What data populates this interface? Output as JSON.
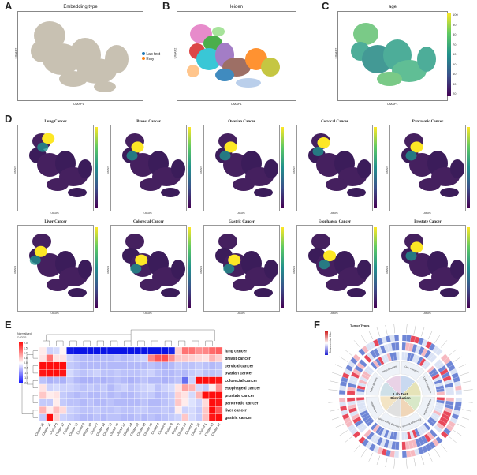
{
  "panels": {
    "A": {
      "letter": "A",
      "title": "Embedding type",
      "xlabel": "UMAP1",
      "ylabel": "UMAP2",
      "legend": [
        {
          "label": "Lab test",
          "color": "#1f77b4"
        },
        {
          "label": "Emy",
          "color": "#ff7f0e"
        }
      ]
    },
    "B": {
      "letter": "B",
      "title": "leiden",
      "xlabel": "UMAP1",
      "ylabel": "UMAP2"
    },
    "C": {
      "letter": "C",
      "title": "age",
      "xlabel": "UMAP1",
      "ylabel": "UMAP2",
      "colorbar_ticks": [
        "100",
        "90",
        "80",
        "70",
        "60",
        "50",
        "40",
        "30",
        "20"
      ]
    },
    "D": {
      "letter": "D",
      "cancers": [
        "Lung Cancer",
        "Breast Cancer",
        "Ovarian Cancer",
        "Cervical Cancer",
        "Pancreatic Cancer",
        "Liver Cancer",
        "Colorectal Cancer",
        "Gastric Cancer",
        "Esophageal Cancer",
        "Prostate Cancer"
      ],
      "xlabel": "UMAP1",
      "ylabel": "UMAP2"
    },
    "E": {
      "letter": "E",
      "legend_title": "Normalized\nz-score"
    },
    "F": {
      "letter": "F",
      "center_label": "Lab Test\nDistribution",
      "legend_title": "Tumor Types",
      "scale_label": "Column-wise filter"
    }
  },
  "chart_data": [
    {
      "type": "heatmap",
      "panel": "E",
      "rows": [
        "lung cancer",
        "breast cancer",
        "cervical cancer",
        "ovarian cancer",
        "colorectal cancer",
        "esophageal cancer",
        "prostate cancer",
        "pancreatic cancer",
        "liver cancer",
        "gastric cancer"
      ],
      "columns": [
        "Cluster 15",
        "Cluster 11",
        "Cluster 0",
        "Cluster 17",
        "Cluster 3",
        "Cluster 16",
        "Cluster 2",
        "Cluster 19",
        "Cluster 7",
        "Cluster 14",
        "Cluster 26",
        "Cluster 10",
        "Cluster 21",
        "Cluster 24",
        "Cluster 22",
        "Cluster 18",
        "Cluster 20",
        "Cluster 4",
        "Cluster 6",
        "Cluster 8",
        "Cluster 5",
        "Cluster 23",
        "Cluster 9",
        "Cluster 25",
        "Cluster 1",
        "Cluster 13",
        "Cluster 12"
      ],
      "values": [
        [
          0.2,
          -0.3,
          -0.2,
          0.1,
          -2.5,
          -2.6,
          -2.6,
          -2.6,
          -2.6,
          -2.6,
          -2.6,
          -2.6,
          -2.6,
          -2.6,
          -2.6,
          -2.6,
          -2.6,
          -2.6,
          -2.6,
          -2.4,
          0.5,
          1.5,
          1.5,
          1.2,
          1.3,
          1.6,
          1.7
        ],
        [
          0.3,
          1.5,
          0.3,
          0.3,
          -0.3,
          -0.5,
          -0.6,
          -0.6,
          -0.6,
          -0.6,
          -0.6,
          -0.5,
          -0.6,
          -0.5,
          -0.4,
          -0.3,
          1.3,
          1.8,
          1.9,
          1.2,
          0.6,
          0.6,
          0.5,
          0.4,
          0.3,
          0.8,
          0.5
        ],
        [
          2.6,
          2.6,
          2.6,
          2.6,
          -0.4,
          -0.5,
          -0.6,
          -0.6,
          -0.6,
          -0.6,
          -0.6,
          -0.6,
          -0.6,
          -0.6,
          -0.6,
          -0.6,
          -0.5,
          -0.6,
          -0.7,
          -0.6,
          -0.4,
          -0.5,
          -0.5,
          -0.4,
          -0.5,
          -0.6,
          -0.5
        ],
        [
          2.5,
          2.6,
          2.6,
          2.5,
          -0.2,
          -0.4,
          -0.5,
          -0.4,
          -0.3,
          -0.5,
          -0.5,
          -0.4,
          -0.5,
          -0.5,
          -0.5,
          -0.4,
          -0.3,
          -0.5,
          -0.6,
          -0.6,
          -0.5,
          -0.6,
          -0.4,
          -0.3,
          -0.5,
          -0.5,
          -0.4
        ],
        [
          -0.5,
          -0.7,
          -0.6,
          -0.7,
          -0.4,
          -0.6,
          -0.7,
          -0.7,
          -0.6,
          -0.7,
          -0.6,
          -0.5,
          -0.6,
          -0.7,
          -0.6,
          -0.5,
          -0.6,
          -0.6,
          -0.7,
          -0.6,
          -0.5,
          -1.5,
          -0.3,
          2.6,
          2.6,
          2.6,
          2.5
        ],
        [
          0.3,
          -0.3,
          -0.2,
          -0.3,
          -0.3,
          -0.4,
          -0.5,
          -0.4,
          -0.5,
          -0.4,
          -0.6,
          -0.4,
          -0.3,
          -0.5,
          -0.4,
          -0.3,
          -0.2,
          -0.5,
          -0.3,
          -0.2,
          0.3,
          1.0,
          0.8,
          -0.2,
          -0.4,
          0.2,
          1.2
        ],
        [
          0.6,
          0.2,
          0.3,
          -0.4,
          -0.5,
          -0.6,
          -0.5,
          -0.6,
          -0.6,
          -0.5,
          -0.6,
          -0.5,
          -0.6,
          -0.6,
          -0.5,
          -0.4,
          -0.4,
          -0.6,
          -0.5,
          -0.4,
          0.5,
          0.3,
          -0.2,
          0.8,
          2.6,
          2.6,
          2.6
        ],
        [
          -0.4,
          -0.4,
          0.2,
          -0.4,
          -0.5,
          -0.5,
          -0.6,
          -0.5,
          -0.6,
          -0.6,
          -0.5,
          -0.6,
          -0.6,
          -0.6,
          -0.6,
          -0.5,
          -0.6,
          -0.6,
          -0.5,
          -0.4,
          0.6,
          0.2,
          -0.1,
          -0.3,
          0.4,
          2.6,
          2.5
        ],
        [
          0.8,
          0.2,
          0.7,
          0.4,
          -0.3,
          -0.4,
          -0.5,
          -0.5,
          -0.4,
          -0.5,
          -0.5,
          -0.4,
          -0.5,
          -0.5,
          -0.4,
          -0.4,
          -0.5,
          -0.5,
          -0.4,
          -0.5,
          0.2,
          -0.3,
          -0.2,
          -0.4,
          0.6,
          2.6,
          1.8
        ],
        [
          -0.4,
          2.6,
          0.5,
          -0.3,
          -0.4,
          -0.5,
          -0.6,
          -0.6,
          -0.5,
          -0.6,
          -0.5,
          -0.5,
          -0.6,
          -0.6,
          -0.5,
          -0.6,
          -0.5,
          -0.6,
          -0.5,
          -0.4,
          -0.3,
          0.6,
          -0.2,
          -0.4,
          0.7,
          2.5,
          2.6
        ]
      ],
      "colorbar_ticks": [
        "2.0",
        "1.5",
        "1.0",
        "0.5",
        "0.0",
        "-0.5",
        "-1.0",
        "-1.5",
        "-2.0"
      ]
    },
    {
      "type": "heatmap",
      "panel": "F",
      "layout": "circular",
      "sectors": [
        "Liver Function",
        "Lipid Metabolism",
        "Kidney Function",
        "Electrolyte Balance",
        "Complete Blood Count",
        "Coagulation",
        "Tumor Markers",
        "Other Analytes"
      ]
    }
  ]
}
